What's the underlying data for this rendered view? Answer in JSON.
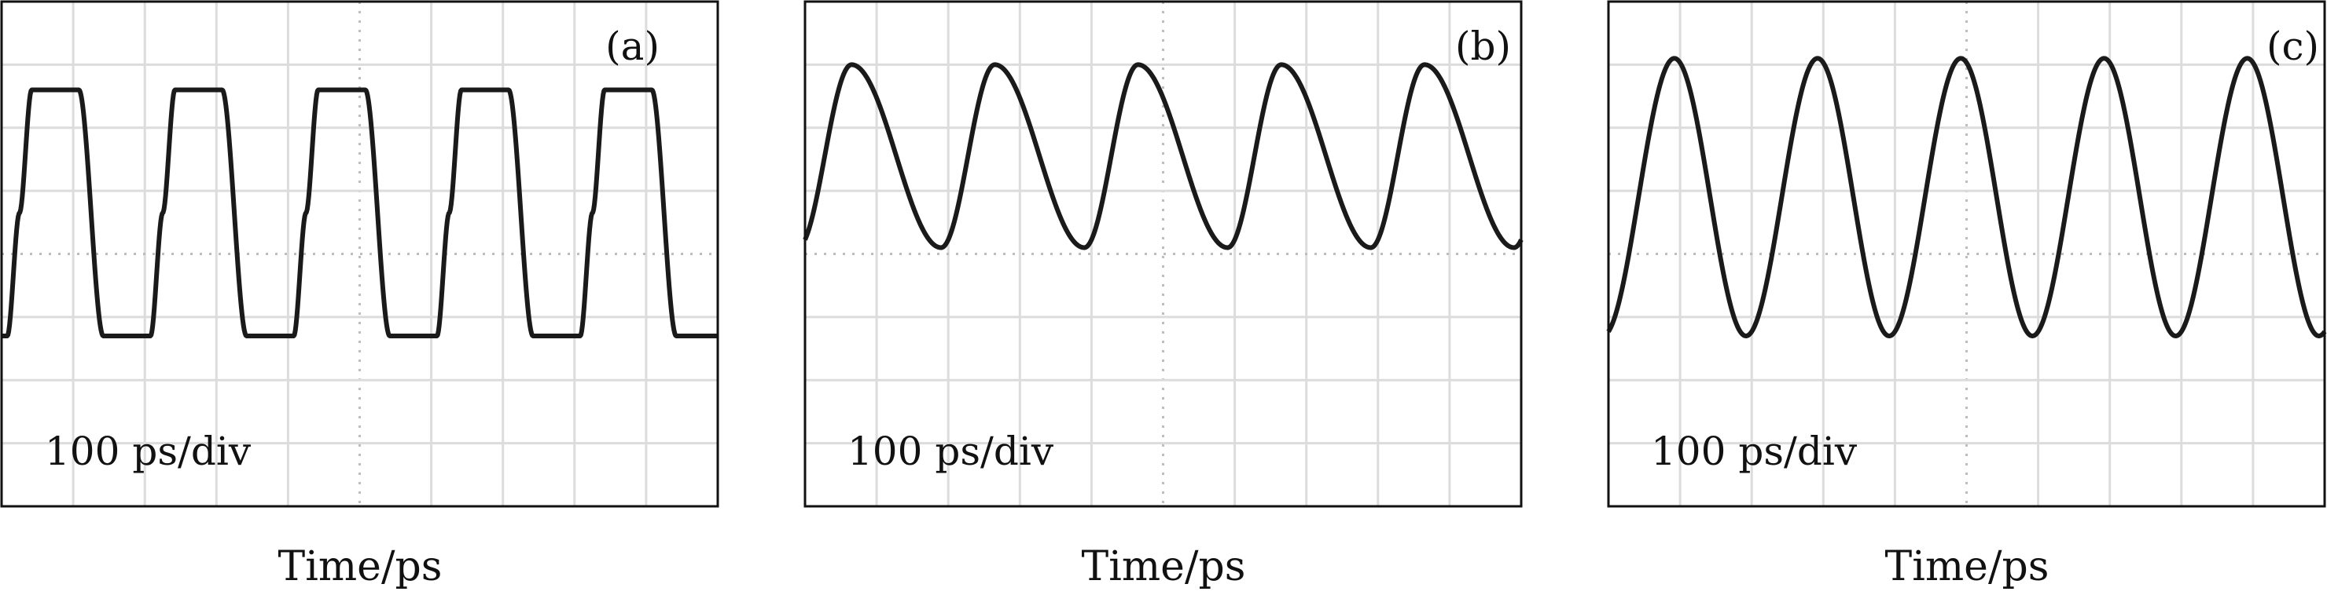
{
  "chart_data": [
    {
      "type": "line",
      "panel_label": "(a)",
      "scale_annotation": "100 ps/div",
      "xlabel": "Time/ps",
      "ylabel": "",
      "grid": true,
      "waveform": "square-like",
      "x_divisions": 10,
      "y_divisions": 8,
      "xlim": [
        0,
        1000
      ],
      "ylim": [
        -4,
        4
      ],
      "period": 200,
      "high_level": 2.6,
      "low_level": -1.3,
      "first_rise_center": 25,
      "color": "#1a1a1a"
    },
    {
      "type": "line",
      "panel_label": "(b)",
      "scale_annotation": "100 ps/div",
      "xlabel": "Time/ps",
      "ylabel": "",
      "grid": true,
      "waveform": "sawtooth-like",
      "x_divisions": 10,
      "y_divisions": 8,
      "xlim": [
        0,
        1000
      ],
      "ylim": [
        -4,
        4
      ],
      "period": 200,
      "peak_level": 3.0,
      "trough_level": 0.1,
      "first_peak": 65,
      "first_trough": 190,
      "color": "#1a1a1a"
    },
    {
      "type": "line",
      "panel_label": "(c)",
      "scale_annotation": "100 ps/div",
      "xlabel": "Time/ps",
      "ylabel": "",
      "grid": true,
      "waveform": "triangle-like",
      "x_divisions": 10,
      "y_divisions": 8,
      "xlim": [
        0,
        1000
      ],
      "ylim": [
        -4,
        4
      ],
      "period": 200,
      "peak_level": 3.1,
      "trough_level": -1.3,
      "first_peak": 92,
      "first_trough": 192,
      "color": "#1a1a1a"
    }
  ]
}
